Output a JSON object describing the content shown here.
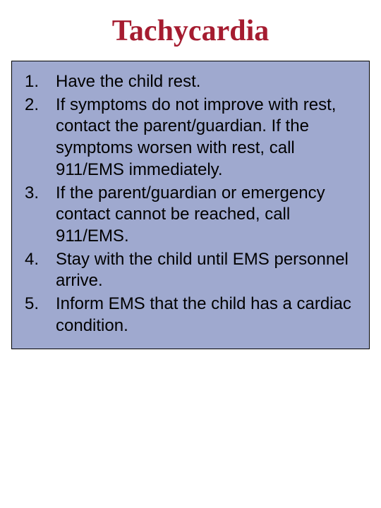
{
  "title": "Tachycardia",
  "title_color": "#a51c30",
  "box_background": "#9fa9cf",
  "box_border": "#000000",
  "text_color": "#000000",
  "title_fontsize": 42,
  "body_fontsize": 24,
  "items": [
    "Have the child rest.",
    "If symptoms do not improve with rest,  contact the parent/guardian. If the symptoms worsen with rest, call 911/EMS immediately.",
    "If the parent/guardian or emergency contact cannot be reached, call 911/EMS.",
    "Stay with the child until EMS personnel arrive.",
    "Inform EMS that the child has a cardiac condition."
  ]
}
